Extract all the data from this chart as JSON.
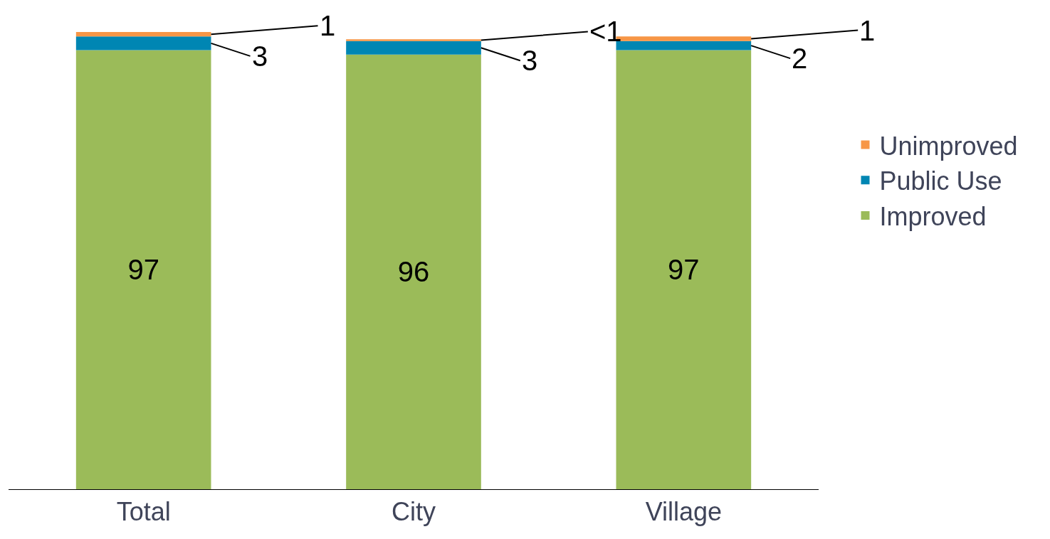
{
  "chart_data": {
    "type": "bar",
    "stacked": true,
    "categories": [
      "Total",
      "City",
      "Village"
    ],
    "series": [
      {
        "name": "Improved",
        "color": "#9bbb59",
        "values": [
          97,
          96,
          97
        ],
        "value_labels": [
          "97",
          "96",
          "97"
        ]
      },
      {
        "name": "Public Use",
        "color": "#0086b3",
        "values": [
          3,
          3,
          2
        ],
        "value_labels": [
          "3",
          "3",
          "2"
        ]
      },
      {
        "name": "Unimproved",
        "color": "#f79646",
        "values": [
          1,
          0.4,
          1
        ],
        "value_labels": [
          "1",
          "<1",
          "1"
        ]
      }
    ],
    "legend": "right",
    "grid": false
  }
}
